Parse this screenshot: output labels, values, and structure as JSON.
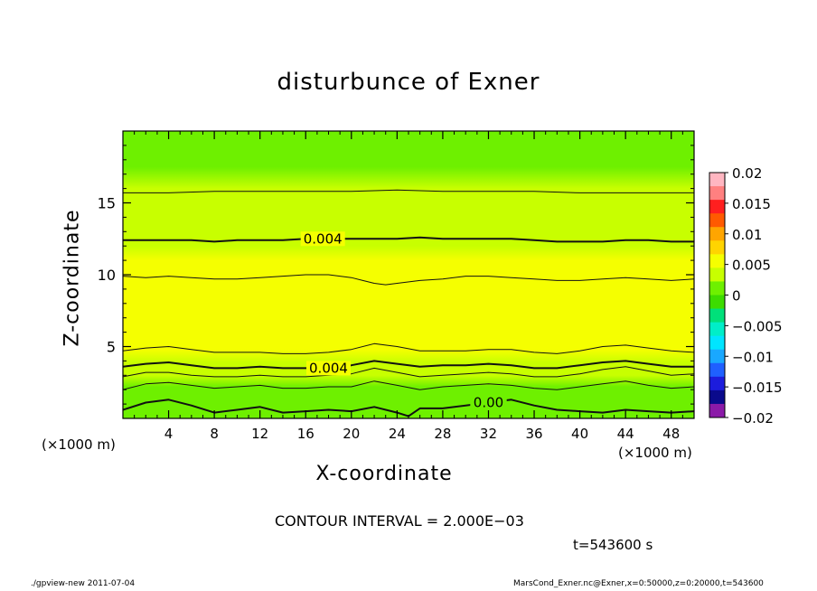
{
  "chart_data": {
    "type": "heatmap",
    "title": "disturbunce of Exner",
    "xlabel": "X-coordinate",
    "ylabel": "Z-coordinate",
    "x_unit_left": "(×1000 m)",
    "x_unit_right": "(×1000 m)",
    "xlim": [
      0,
      50
    ],
    "ylim": [
      0,
      20
    ],
    "x_ticks": [
      4,
      8,
      12,
      16,
      20,
      24,
      28,
      32,
      36,
      40,
      44,
      48
    ],
    "x_tick_labels": [
      "4",
      "8",
      "12",
      "16",
      "20",
      "24",
      "28",
      "32",
      "36",
      "40",
      "44",
      "48"
    ],
    "y_ticks": [
      5,
      10,
      15
    ],
    "y_tick_labels": [
      "5",
      "10",
      "15"
    ],
    "colorbar": {
      "range": [
        -0.02,
        0.02
      ],
      "ticks": [
        0.02,
        0.015,
        0.01,
        0.005,
        0,
        -0.005,
        -0.01,
        -0.015,
        -0.02
      ],
      "tick_labels": [
        "0.02",
        "0.015",
        "0.01",
        "0.005",
        "0",
        "−0.005",
        "−0.01",
        "−0.015",
        "−0.02"
      ],
      "colors": [
        "#ffb6c1",
        "#ff8080",
        "#ff1f1f",
        "#ff5a00",
        "#ffa500",
        "#ffd400",
        "#f5ff00",
        "#c8ff00",
        "#6ef000",
        "#3ddc00",
        "#00e07a",
        "#00eec8",
        "#00e5ff",
        "#19a8ff",
        "#1f60ff",
        "#1c1cdc",
        "#0a0a8c",
        "#8b1aa8"
      ]
    },
    "field_profile": {
      "z": [
        0.0,
        0.7,
        1.4,
        2.2,
        3.0,
        3.9,
        4.8,
        5.6,
        6.4,
        7.1,
        7.8,
        8.6,
        9.4,
        10.2,
        11.0,
        12.0,
        13.2,
        14.6,
        16.0,
        17.5,
        19.0,
        20.0
      ],
      "value": [
        0.0002,
        0.0008,
        0.0015,
        0.0022,
        0.003,
        0.0038,
        0.0045,
        0.0052,
        0.0057,
        0.006,
        0.0059,
        0.0056,
        0.0052,
        0.0048,
        0.0045,
        0.0041,
        0.0037,
        0.0032,
        0.0026,
        0.002,
        0.0015,
        0.0012
      ]
    },
    "contour_lines": [
      {
        "level": 0.0,
        "label": "0.00",
        "label_x": 32,
        "heavy": true,
        "x": [
          0,
          2,
          4,
          6,
          8,
          10,
          12,
          14,
          16,
          18,
          20,
          22,
          24,
          25,
          26,
          28,
          30,
          32,
          34,
          36,
          38,
          40,
          42,
          44,
          46,
          48,
          50
        ],
        "z": [
          0.6,
          1.1,
          1.3,
          0.9,
          0.4,
          0.6,
          0.8,
          0.4,
          0.5,
          0.6,
          0.5,
          0.8,
          0.4,
          0.15,
          0.7,
          0.7,
          0.9,
          1.1,
          1.3,
          0.9,
          0.6,
          0.5,
          0.4,
          0.6,
          0.5,
          0.4,
          0.5
        ]
      },
      {
        "level": 0.002,
        "label": "",
        "heavy": false,
        "x": [
          0,
          2,
          4,
          6,
          8,
          10,
          12,
          14,
          16,
          18,
          20,
          22,
          24,
          26,
          28,
          30,
          32,
          34,
          36,
          38,
          40,
          42,
          44,
          46,
          48,
          50
        ],
        "z": [
          2.0,
          2.4,
          2.5,
          2.3,
          2.1,
          2.2,
          2.3,
          2.1,
          2.1,
          2.2,
          2.2,
          2.6,
          2.3,
          2.0,
          2.2,
          2.3,
          2.4,
          2.3,
          2.1,
          2.0,
          2.2,
          2.4,
          2.6,
          2.3,
          2.1,
          2.2
        ]
      },
      {
        "level": 0.003,
        "label": "",
        "heavy": false,
        "x": [
          0,
          2,
          4,
          6,
          8,
          10,
          12,
          14,
          16,
          18,
          20,
          22,
          24,
          26,
          28,
          30,
          32,
          34,
          36,
          38,
          40,
          42,
          44,
          46,
          48,
          50
        ],
        "z": [
          2.9,
          3.2,
          3.2,
          3.0,
          2.9,
          2.9,
          3.0,
          2.9,
          2.9,
          3.0,
          3.1,
          3.5,
          3.2,
          2.9,
          3.0,
          3.1,
          3.2,
          3.1,
          2.9,
          2.9,
          3.1,
          3.4,
          3.6,
          3.3,
          3.0,
          3.1
        ]
      },
      {
        "level": 0.004,
        "label": "0.004",
        "label_x": 18,
        "heavy": true,
        "x": [
          0,
          2,
          4,
          6,
          8,
          10,
          12,
          14,
          16,
          18,
          20,
          22,
          24,
          26,
          28,
          30,
          32,
          34,
          36,
          38,
          40,
          42,
          44,
          46,
          48,
          50
        ],
        "z": [
          3.6,
          3.8,
          3.9,
          3.7,
          3.5,
          3.5,
          3.6,
          3.5,
          3.5,
          3.5,
          3.7,
          4.0,
          3.8,
          3.6,
          3.7,
          3.7,
          3.8,
          3.7,
          3.5,
          3.5,
          3.7,
          3.9,
          4.0,
          3.8,
          3.6,
          3.6
        ]
      },
      {
        "level": 0.005,
        "label": "",
        "heavy": false,
        "x": [
          0,
          2,
          4,
          6,
          8,
          10,
          12,
          14,
          16,
          18,
          20,
          22,
          24,
          26,
          28,
          30,
          32,
          34,
          36,
          38,
          40,
          42,
          44,
          46,
          48,
          50
        ],
        "z": [
          4.7,
          4.9,
          5.0,
          4.8,
          4.6,
          4.6,
          4.6,
          4.5,
          4.5,
          4.6,
          4.8,
          5.2,
          5.0,
          4.7,
          4.7,
          4.7,
          4.8,
          4.8,
          4.6,
          4.5,
          4.7,
          5.0,
          5.1,
          4.9,
          4.7,
          4.6
        ]
      },
      {
        "level": 0.005,
        "label": "",
        "heavy": false,
        "x": [
          0,
          2,
          4,
          6,
          8,
          10,
          12,
          14,
          16,
          18,
          20,
          21,
          22,
          23,
          24,
          26,
          28,
          30,
          32,
          34,
          36,
          38,
          40,
          42,
          44,
          46,
          48,
          50
        ],
        "z": [
          9.9,
          9.8,
          9.9,
          9.8,
          9.7,
          9.7,
          9.8,
          9.9,
          10.0,
          10.0,
          9.8,
          9.6,
          9.4,
          9.3,
          9.4,
          9.6,
          9.7,
          9.9,
          9.9,
          9.8,
          9.7,
          9.6,
          9.6,
          9.7,
          9.8,
          9.7,
          9.6,
          9.7
        ]
      },
      {
        "level": 0.004,
        "label": "0.004",
        "label_x": 17.5,
        "heavy": true,
        "x": [
          0,
          2,
          4,
          6,
          8,
          10,
          12,
          14,
          16,
          18,
          20,
          22,
          24,
          26,
          28,
          30,
          32,
          34,
          36,
          38,
          40,
          42,
          44,
          46,
          48,
          50
        ],
        "z": [
          12.4,
          12.4,
          12.4,
          12.4,
          12.3,
          12.4,
          12.4,
          12.4,
          12.5,
          12.5,
          12.5,
          12.5,
          12.5,
          12.6,
          12.5,
          12.5,
          12.5,
          12.5,
          12.4,
          12.3,
          12.3,
          12.3,
          12.4,
          12.4,
          12.3,
          12.3
        ]
      },
      {
        "level": 0.003,
        "label": "",
        "heavy": false,
        "x": [
          0,
          4,
          8,
          12,
          16,
          20,
          24,
          28,
          32,
          36,
          40,
          44,
          48,
          50
        ],
        "z": [
          15.7,
          15.7,
          15.8,
          15.8,
          15.8,
          15.8,
          15.9,
          15.8,
          15.8,
          15.8,
          15.7,
          15.7,
          15.7,
          15.7
        ]
      }
    ]
  },
  "labels": {
    "contour_interval": "CONTOUR INTERVAL = 2.000E−03",
    "time": "t=543600 s",
    "footer_left": "./gpview-new   2011-07-04",
    "footer_right": "MarsCond_Exner.nc@Exner,x=0:50000,z=0:20000,t=543600"
  }
}
